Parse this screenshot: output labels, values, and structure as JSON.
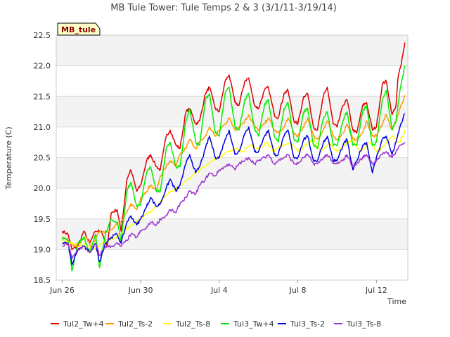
{
  "chart_data": {
    "type": "line",
    "title": "MB Tule Tower: Tule Temps 2 & 3 (3/1/11-3/19/14)",
    "xlabel": "Time",
    "ylabel": "Temperature (C)",
    "station_tag": "MB_tule",
    "ylim": [
      18.5,
      22.5
    ],
    "yticks": [
      18.5,
      19.0,
      19.5,
      20.0,
      20.5,
      21.0,
      21.5,
      22.0,
      22.5
    ],
    "ytick_labels": [
      "18.5",
      "19.0",
      "19.5",
      "20.0",
      "20.5",
      "21.0",
      "21.5",
      "22.0",
      "22.5"
    ],
    "xlim_days": [
      -0.3,
      17.6
    ],
    "xticks": [
      0,
      4,
      8,
      12,
      16
    ],
    "xtick_labels": [
      "Jun 26",
      "Jun 30",
      "Jul 4",
      "Jul 8",
      "Jul 12"
    ],
    "grid": true,
    "legend_position": "bottom",
    "series": [
      {
        "name": "Tul2_Tw+4",
        "color": "#dd0000",
        "x": [
          0,
          0.3,
          0.5,
          0.8,
          1.1,
          1.4,
          1.7,
          2,
          2.3,
          2.5,
          2.8,
          3,
          3.3,
          3.5,
          3.8,
          4,
          4.3,
          4.5,
          4.8,
          5,
          5.3,
          5.5,
          5.8,
          6,
          6.3,
          6.5,
          6.8,
          7,
          7.3,
          7.5,
          7.8,
          8,
          8.3,
          8.5,
          8.8,
          9,
          9.3,
          9.5,
          9.8,
          10,
          10.3,
          10.5,
          10.8,
          11,
          11.3,
          11.5,
          11.8,
          12,
          12.3,
          12.5,
          12.8,
          13,
          13.3,
          13.5,
          13.8,
          14,
          14.3,
          14.5,
          14.8,
          15,
          15.3,
          15.5,
          15.8,
          16,
          16.3,
          16.5,
          16.8,
          17,
          17.1,
          17.3,
          17.45
        ],
        "y": [
          19.3,
          19.25,
          19.0,
          19.05,
          19.3,
          19.1,
          19.3,
          19.3,
          19.05,
          19.6,
          19.65,
          19.3,
          20.15,
          20.3,
          19.95,
          20.05,
          20.45,
          20.55,
          20.35,
          20.3,
          20.85,
          20.95,
          20.7,
          20.65,
          21.25,
          21.3,
          21.05,
          21.1,
          21.55,
          21.65,
          21.3,
          21.25,
          21.75,
          21.85,
          21.4,
          21.35,
          21.75,
          21.8,
          21.35,
          21.3,
          21.6,
          21.65,
          21.2,
          21.15,
          21.55,
          21.6,
          21.1,
          21.05,
          21.5,
          21.55,
          21.0,
          20.95,
          21.5,
          21.65,
          21.05,
          21.0,
          21.35,
          21.45,
          20.95,
          20.9,
          21.35,
          21.4,
          20.95,
          21.0,
          21.7,
          21.75,
          21.2,
          21.35,
          21.8,
          22.1,
          22.38
        ]
      },
      {
        "name": "Tul2_Ts-2",
        "color": "#ff9900",
        "x": [
          0,
          0.3,
          0.6,
          0.9,
          1.2,
          1.5,
          1.8,
          2.1,
          2.4,
          2.7,
          3,
          3.3,
          3.5,
          3.8,
          4,
          4.3,
          4.5,
          4.8,
          5,
          5.3,
          5.5,
          5.8,
          6,
          6.3,
          6.5,
          6.8,
          7,
          7.3,
          7.5,
          7.8,
          8,
          8.3,
          8.5,
          8.8,
          9,
          9.3,
          9.5,
          9.8,
          10,
          10.3,
          10.5,
          10.8,
          11,
          11.3,
          11.5,
          11.8,
          12,
          12.3,
          12.5,
          12.8,
          13,
          13.3,
          13.5,
          13.8,
          14,
          14.3,
          14.5,
          14.8,
          15,
          15.3,
          15.5,
          15.8,
          16,
          16.3,
          16.5,
          16.8,
          17,
          17.2,
          17.45
        ],
        "y": [
          19.2,
          19.15,
          19.05,
          19.1,
          19.2,
          19.05,
          19.25,
          19.3,
          19.3,
          19.4,
          19.45,
          19.6,
          19.75,
          19.65,
          19.85,
          19.95,
          20.05,
          19.95,
          20.2,
          20.35,
          20.45,
          20.35,
          20.55,
          20.65,
          20.8,
          20.65,
          20.75,
          20.85,
          21.0,
          20.85,
          20.95,
          21.05,
          21.15,
          20.95,
          21.0,
          21.1,
          21.2,
          21.0,
          20.95,
          21.05,
          21.15,
          20.95,
          20.9,
          21.0,
          21.15,
          20.9,
          20.85,
          21.0,
          21.15,
          20.85,
          20.8,
          20.95,
          21.1,
          20.85,
          20.8,
          20.9,
          21.05,
          20.8,
          20.8,
          20.9,
          21.1,
          20.85,
          20.85,
          21.05,
          21.2,
          20.95,
          21.1,
          21.3,
          21.52
        ]
      },
      {
        "name": "Tul2_Ts-8",
        "color": "#ffff00",
        "x": [
          0,
          0.4,
          0.8,
          1.2,
          1.6,
          2,
          2.4,
          2.8,
          3.2,
          3.6,
          4,
          4.4,
          4.8,
          5.2,
          5.6,
          6,
          6.4,
          6.8,
          7.2,
          7.6,
          8,
          8.4,
          8.8,
          9.2,
          9.6,
          10,
          10.4,
          10.8,
          11.2,
          11.6,
          12,
          12.4,
          12.8,
          13.2,
          13.6,
          14,
          14.4,
          14.8,
          15.2,
          15.6,
          16,
          16.4,
          16.8,
          17.2,
          17.45
        ],
        "y": [
          19.15,
          19.1,
          19.05,
          19.1,
          19.0,
          19.1,
          19.15,
          19.2,
          19.3,
          19.4,
          19.5,
          19.6,
          19.7,
          19.85,
          19.95,
          20.05,
          20.15,
          20.25,
          20.35,
          20.45,
          20.5,
          20.6,
          20.65,
          20.6,
          20.7,
          20.65,
          20.75,
          20.6,
          20.7,
          20.75,
          20.6,
          20.7,
          20.8,
          20.6,
          20.75,
          20.6,
          20.7,
          20.8,
          20.6,
          20.75,
          20.6,
          20.7,
          20.85,
          20.75,
          20.95
        ]
      },
      {
        "name": "Tul3_Tw+4",
        "color": "#00ee00",
        "x": [
          0,
          0.3,
          0.5,
          0.8,
          1.1,
          1.4,
          1.7,
          1.9,
          2.2,
          2.5,
          2.8,
          3,
          3.3,
          3.5,
          3.8,
          4,
          4.3,
          4.5,
          4.8,
          5,
          5.3,
          5.5,
          5.8,
          6,
          6.3,
          6.5,
          6.8,
          7,
          7.3,
          7.5,
          7.8,
          8,
          8.3,
          8.5,
          8.8,
          9,
          9.3,
          9.5,
          9.8,
          10,
          10.3,
          10.5,
          10.8,
          11,
          11.3,
          11.5,
          11.8,
          12,
          12.3,
          12.5,
          12.8,
          13,
          13.3,
          13.5,
          13.8,
          14,
          14.3,
          14.5,
          14.8,
          15,
          15.3,
          15.5,
          15.8,
          16,
          16.3,
          16.5,
          16.8,
          17,
          17.2,
          17.45
        ],
        "y": [
          19.2,
          19.15,
          18.65,
          19.1,
          19.2,
          18.95,
          19.25,
          18.7,
          19.25,
          19.5,
          19.45,
          19.15,
          19.95,
          20.1,
          19.7,
          19.75,
          20.25,
          20.35,
          19.95,
          19.95,
          20.65,
          20.75,
          20.35,
          20.35,
          21.1,
          21.3,
          20.75,
          20.7,
          21.45,
          21.55,
          20.9,
          20.85,
          21.55,
          21.65,
          21.0,
          20.95,
          21.45,
          21.55,
          20.95,
          20.85,
          21.35,
          21.45,
          20.85,
          20.75,
          21.3,
          21.4,
          20.8,
          20.75,
          21.25,
          21.3,
          20.7,
          20.65,
          21.15,
          21.25,
          20.7,
          20.7,
          21.1,
          21.25,
          20.7,
          20.7,
          21.25,
          21.35,
          20.7,
          20.75,
          21.45,
          21.6,
          20.95,
          21.1,
          21.6,
          22.0
        ]
      },
      {
        "name": "Tul3_Ts-2",
        "color": "#0000dd",
        "x": [
          0,
          0.3,
          0.5,
          0.8,
          1.1,
          1.4,
          1.7,
          1.9,
          2.2,
          2.5,
          2.8,
          3,
          3.3,
          3.5,
          3.8,
          4,
          4.3,
          4.5,
          4.8,
          5,
          5.3,
          5.5,
          5.8,
          6,
          6.3,
          6.5,
          6.8,
          7,
          7.3,
          7.5,
          7.8,
          8,
          8.3,
          8.5,
          8.8,
          9,
          9.3,
          9.5,
          9.8,
          10,
          10.3,
          10.5,
          10.8,
          11,
          11.3,
          11.5,
          11.8,
          12,
          12.3,
          12.5,
          12.8,
          13,
          13.3,
          13.5,
          13.8,
          14,
          14.3,
          14.5,
          14.8,
          15,
          15.3,
          15.5,
          15.8,
          16,
          16.3,
          16.5,
          16.8,
          17,
          17.2,
          17.45
        ],
        "y": [
          19.1,
          19.1,
          18.75,
          19.0,
          19.05,
          18.95,
          19.1,
          18.8,
          19.1,
          19.2,
          19.25,
          19.1,
          19.45,
          19.55,
          19.4,
          19.5,
          19.7,
          19.85,
          19.7,
          19.75,
          20.0,
          20.15,
          19.95,
          20.05,
          20.4,
          20.55,
          20.25,
          20.35,
          20.65,
          20.85,
          20.5,
          20.5,
          20.8,
          20.95,
          20.55,
          20.6,
          20.9,
          21.0,
          20.6,
          20.6,
          20.85,
          20.95,
          20.55,
          20.55,
          20.85,
          20.95,
          20.5,
          20.5,
          20.8,
          20.85,
          20.45,
          20.45,
          20.75,
          20.85,
          20.45,
          20.45,
          20.7,
          20.8,
          20.3,
          20.45,
          20.7,
          20.75,
          20.25,
          20.5,
          20.8,
          20.85,
          20.55,
          20.75,
          21.0,
          21.22
        ]
      },
      {
        "name": "Tul3_Ts-8",
        "color": "#9933cc",
        "x": [
          0,
          0.3,
          0.5,
          0.8,
          1.1,
          1.4,
          1.7,
          1.9,
          2.2,
          2.5,
          2.8,
          3,
          3.3,
          3.5,
          3.8,
          4,
          4.3,
          4.5,
          4.8,
          5,
          5.3,
          5.5,
          5.8,
          6,
          6.3,
          6.5,
          6.8,
          7,
          7.3,
          7.5,
          7.8,
          8,
          8.3,
          8.5,
          8.8,
          9,
          9.3,
          9.5,
          9.8,
          10,
          10.3,
          10.5,
          10.8,
          11,
          11.3,
          11.5,
          11.8,
          12,
          12.3,
          12.5,
          12.8,
          13,
          13.3,
          13.5,
          13.8,
          14,
          14.3,
          14.5,
          14.8,
          15,
          15.3,
          15.5,
          15.8,
          16,
          16.3,
          16.5,
          16.8,
          17,
          17.2,
          17.45
        ],
        "y": [
          19.05,
          19.1,
          18.85,
          19.0,
          19.05,
          18.95,
          19.1,
          18.9,
          19.05,
          19.05,
          19.1,
          19.05,
          19.15,
          19.25,
          19.2,
          19.3,
          19.35,
          19.45,
          19.4,
          19.5,
          19.55,
          19.65,
          19.6,
          19.75,
          19.85,
          19.95,
          19.9,
          20.05,
          20.15,
          20.25,
          20.2,
          20.3,
          20.35,
          20.4,
          20.3,
          20.4,
          20.45,
          20.5,
          20.4,
          20.45,
          20.5,
          20.55,
          20.4,
          20.45,
          20.5,
          20.55,
          20.4,
          20.4,
          20.5,
          20.55,
          20.4,
          20.4,
          20.5,
          20.55,
          20.4,
          20.4,
          20.45,
          20.55,
          20.35,
          20.4,
          20.5,
          20.55,
          20.4,
          20.45,
          20.55,
          20.6,
          20.5,
          20.6,
          20.7,
          20.75
        ]
      }
    ]
  }
}
